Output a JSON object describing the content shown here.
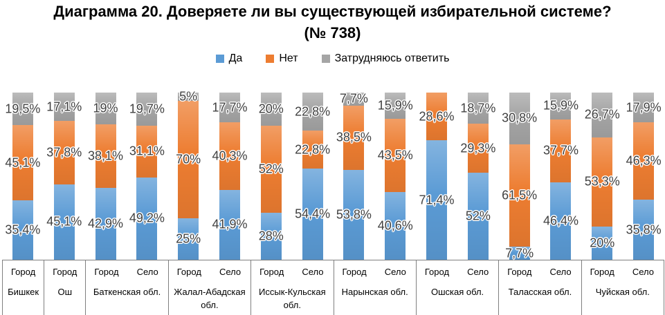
{
  "title": "Диаграмма 20. Доверяете ли вы существующей избирательной системе? (№ 738)",
  "legend": {
    "items": [
      {
        "label": "Да",
        "color": "#5B9BD5"
      },
      {
        "label": "Нет",
        "color": "#ED7D31"
      },
      {
        "label": "Затрудняюсь ответить",
        "color": "#A5A5A5"
      }
    ]
  },
  "chart_data": {
    "type": "bar",
    "stacked": true,
    "orientation": "vertical",
    "unit": "percent",
    "ylim": [
      0,
      100
    ],
    "grid": false,
    "legend_position": "top",
    "title": "Диаграмма 20. Доверяете ли вы существующей избирательной системе? (№ 738)",
    "series_names": [
      "Да",
      "Нет",
      "Затрудняюсь ответить"
    ],
    "series_colors": [
      "#5B9BD5",
      "#ED7D31",
      "#A5A5A5"
    ],
    "groups": [
      {
        "region": "Бишкек",
        "bars": [
          {
            "area": "Город",
            "values": [
              35.4,
              45.1,
              19.5
            ],
            "labels": [
              "35,4%",
              "45,1%",
              "19,5%"
            ]
          }
        ]
      },
      {
        "region": "Ош",
        "bars": [
          {
            "area": "Город",
            "values": [
              45.1,
              37.8,
              17.1
            ],
            "labels": [
              "45,1%",
              "37,8%",
              "17,1%"
            ]
          }
        ]
      },
      {
        "region": "Баткенская обл.",
        "bars": [
          {
            "area": "Город",
            "values": [
              42.9,
              38.1,
              19
            ],
            "labels": [
              "42,9%",
              "38,1%",
              "19%"
            ]
          },
          {
            "area": "Село",
            "values": [
              49.2,
              31.1,
              19.7
            ],
            "labels": [
              "49,2%",
              "31,1%",
              "19,7%"
            ]
          }
        ]
      },
      {
        "region": "Жалал-Абадская обл.",
        "bars": [
          {
            "area": "Город",
            "values": [
              25,
              70,
              5
            ],
            "labels": [
              "25%",
              "70%",
              "5%"
            ]
          },
          {
            "area": "Село",
            "values": [
              41.9,
              40.3,
              17.7
            ],
            "labels": [
              "41,9%",
              "40,3%",
              "17,7%"
            ]
          }
        ]
      },
      {
        "region": "Иссык-Кульская обл.",
        "bars": [
          {
            "area": "Город",
            "values": [
              28,
              52,
              20
            ],
            "labels": [
              "28%",
              "52%",
              "20%"
            ]
          },
          {
            "area": "Село",
            "values": [
              54.4,
              22.8,
              22.8
            ],
            "labels": [
              "54,4%",
              "22,8%",
              "22,8%"
            ]
          }
        ]
      },
      {
        "region": "Нарынская обл.",
        "bars": [
          {
            "area": "Город",
            "values": [
              53.8,
              38.5,
              7.7
            ],
            "labels": [
              "53,8%",
              "38,5%",
              "7,7%"
            ]
          },
          {
            "area": "Село",
            "values": [
              40.6,
              43.5,
              15.9
            ],
            "labels": [
              "40,6%",
              "43,5%",
              "15,9%"
            ]
          }
        ]
      },
      {
        "region": "Ошская обл.",
        "bars": [
          {
            "area": "Город",
            "values": [
              71.4,
              28.6,
              0
            ],
            "labels": [
              "71,4%",
              "28,6%",
              null
            ]
          },
          {
            "area": "Село",
            "values": [
              52,
              29.3,
              18.7
            ],
            "labels": [
              "52%",
              "29,3%",
              "18,7%"
            ]
          }
        ]
      },
      {
        "region": "Таласская обл.",
        "bars": [
          {
            "area": "Город",
            "values": [
              7.7,
              61.5,
              30.8
            ],
            "labels": [
              "7,7%",
              "61,5%",
              "30,8%"
            ]
          },
          {
            "area": "Село",
            "values": [
              46.4,
              37.7,
              15.9
            ],
            "labels": [
              "46,4%",
              "37,7%",
              "15,9%"
            ]
          }
        ]
      },
      {
        "region": "Чуйская обл.",
        "bars": [
          {
            "area": "Город",
            "values": [
              20,
              53.3,
              26.7
            ],
            "labels": [
              "20%",
              "53,3%",
              "26,7%"
            ]
          },
          {
            "area": "Село",
            "values": [
              35.8,
              46.3,
              17.9
            ],
            "labels": [
              "35,8%",
              "46,3%",
              "17,9%"
            ]
          }
        ]
      }
    ]
  }
}
